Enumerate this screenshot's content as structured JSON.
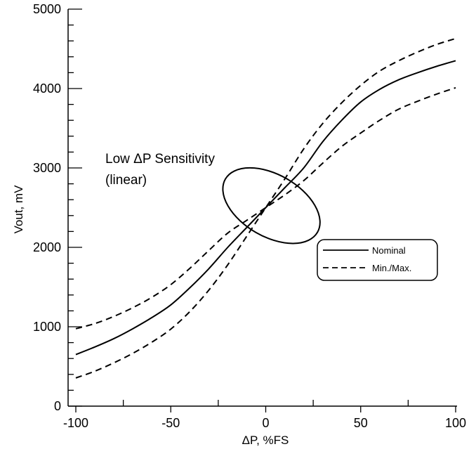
{
  "chart_data": {
    "type": "line",
    "xlabel": "ΔP,  %FS",
    "ylabel": "Vout,  mV",
    "xlim": [
      -100,
      100
    ],
    "ylim": [
      0,
      5000
    ],
    "x_ticks": [
      -100,
      -50,
      0,
      50,
      100
    ],
    "y_ticks": [
      0,
      1000,
      2000,
      3000,
      4000,
      5000
    ],
    "grid": false,
    "legend_position": "right",
    "x": [
      -100,
      -90,
      -80,
      -70,
      -60,
      -50,
      -40,
      -30,
      -20,
      -10,
      0,
      10,
      20,
      30,
      40,
      50,
      60,
      70,
      80,
      90,
      100
    ],
    "series": [
      {
        "name": "Nominal",
        "style": "solid",
        "values": [
          650,
          745,
          850,
          975,
          1115,
          1275,
          1490,
          1730,
          2000,
          2250,
          2500,
          2750,
          3000,
          3330,
          3600,
          3830,
          3990,
          4110,
          4200,
          4280,
          4350
        ]
      },
      {
        "name": "Min./Max.",
        "style": "dashed",
        "values": [
          355,
          440,
          545,
          665,
          805,
          970,
          1190,
          1460,
          1780,
          2140,
          2500,
          2860,
          3240,
          3560,
          3820,
          4040,
          4220,
          4350,
          4460,
          4555,
          4630
        ]
      },
      {
        "name": "Min./Max.",
        "style": "dashed",
        "values": [
          975,
          1040,
          1130,
          1240,
          1370,
          1530,
          1735,
          1960,
          2180,
          2340,
          2500,
          2660,
          2840,
          3060,
          3270,
          3440,
          3600,
          3740,
          3840,
          3930,
          4010
        ]
      }
    ],
    "annotation": {
      "line1": "Low ΔP Sensitivity",
      "line2": "(linear)",
      "ellipse_center": [
        3,
        2525
      ],
      "ellipse_rx": 28,
      "ellipse_ry": 780,
      "ellipse_tilt_deg": 30
    },
    "legend": {
      "entries": [
        {
          "label": "Nominal",
          "style": "solid"
        },
        {
          "label": "Min./Max.",
          "style": "dashed"
        }
      ]
    }
  }
}
